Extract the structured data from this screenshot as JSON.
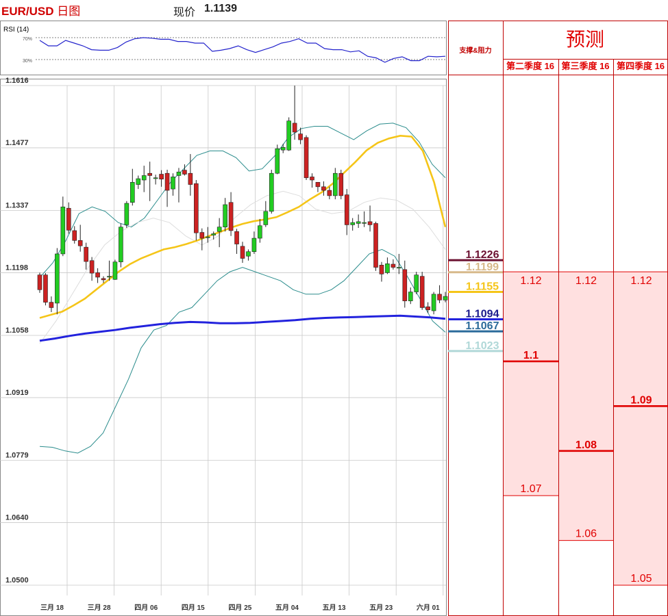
{
  "header": {
    "pair": "EUR/USD",
    "period": "日图",
    "price_label": "现价",
    "price_value": "1.1139"
  },
  "rsi": {
    "label": "RSI (14)",
    "levels": [
      "70%",
      "30%"
    ],
    "color": "#2222cc"
  },
  "chart_data": [
    {
      "type": "candlestick",
      "title": "EUR/USD 日图",
      "y_ticks": [
        "1.1616",
        "1.1477",
        "1.1337",
        "1.1198",
        "1.1058",
        "1.0919",
        "1.0779",
        "1.0640",
        "1.0500"
      ],
      "ylim": [
        1.05,
        1.1616
      ],
      "x_tick_labels": [
        "三月 18",
        "三月 28",
        "四月 06",
        "四月 15",
        "四月 25",
        "五月 04",
        "五月 13",
        "五月 23",
        "六月 01"
      ],
      "grid": true,
      "colors": {
        "up": "#22cc22",
        "down": "#cc2222",
        "ma_fast": "#f5c518",
        "ma_slow": "#2222dd",
        "bands": "#2a8c8c",
        "mid": "#dddddd"
      },
      "candles": [
        [
          1.1193,
          1.116,
          1.1198,
          1.1153
        ],
        [
          1.1193,
          1.1132,
          1.1197,
          1.1125
        ],
        [
          1.1132,
          1.112,
          1.1145,
          1.111
        ],
        [
          1.113,
          1.124,
          1.1253,
          1.1105
        ],
        [
          1.124,
          1.1345,
          1.1368,
          1.1235
        ],
        [
          1.1342,
          1.1293,
          1.1355,
          1.1285
        ],
        [
          1.1292,
          1.127,
          1.1302,
          1.1263
        ],
        [
          1.127,
          1.1258,
          1.1305,
          1.1245
        ],
        [
          1.1255,
          1.1223,
          1.1265,
          1.1205
        ],
        [
          1.1225,
          1.1197,
          1.1233,
          1.118
        ],
        [
          1.1198,
          1.1188,
          1.1208,
          1.1175
        ],
        [
          1.1185,
          1.1182,
          1.119,
          1.1175
        ],
        [
          1.119,
          1.119,
          1.1225,
          1.118
        ],
        [
          1.1183,
          1.1222,
          1.1227,
          1.1182
        ],
        [
          1.1222,
          1.13,
          1.1308,
          1.121
        ],
        [
          1.1305,
          1.1353,
          1.1358,
          1.1298
        ],
        [
          1.1355,
          1.14,
          1.143,
          1.1348
        ],
        [
          1.1395,
          1.1408,
          1.1415,
          1.1385
        ],
        [
          1.1405,
          1.1415,
          1.1437,
          1.1378
        ],
        [
          1.142,
          1.1415,
          1.1446,
          1.1358
        ],
        [
          1.141,
          1.141,
          1.1417,
          1.1395
        ],
        [
          1.1418,
          1.1407,
          1.1427,
          1.139
        ],
        [
          1.142,
          1.1382,
          1.1428,
          1.1345
        ],
        [
          1.1385,
          1.1412,
          1.142,
          1.137
        ],
        [
          1.1415,
          1.1423,
          1.1432,
          1.1355
        ],
        [
          1.1427,
          1.1418,
          1.144,
          1.1415
        ],
        [
          1.142,
          1.1395,
          1.1463,
          1.137
        ],
        [
          1.1397,
          1.1287,
          1.1405,
          1.127
        ],
        [
          1.1288,
          1.1275,
          1.1297,
          1.1248
        ],
        [
          1.1278,
          1.1278,
          1.13,
          1.1265
        ],
        [
          1.1282,
          1.1285,
          1.129,
          1.1272
        ],
        [
          1.129,
          1.13,
          1.132,
          1.1255
        ],
        [
          1.13,
          1.135,
          1.1365,
          1.129
        ],
        [
          1.1355,
          1.1292,
          1.1378,
          1.128
        ],
        [
          1.129,
          1.1262,
          1.1296,
          1.124
        ],
        [
          1.1257,
          1.123,
          1.1267,
          1.122
        ],
        [
          1.1235,
          1.1245,
          1.125,
          1.1225
        ],
        [
          1.1245,
          1.1275,
          1.129,
          1.124
        ],
        [
          1.1275,
          1.1303,
          1.1318,
          1.1265
        ],
        [
          1.1305,
          1.1335,
          1.1358,
          1.13
        ],
        [
          1.1335,
          1.142,
          1.1428,
          1.133
        ],
        [
          1.142,
          1.1475,
          1.1484,
          1.1418
        ],
        [
          1.1472,
          1.1478,
          1.1486,
          1.1465
        ],
        [
          1.1472,
          1.1537,
          1.1545,
          1.147
        ],
        [
          1.1532,
          1.1512,
          1.1616,
          1.1495
        ],
        [
          1.1508,
          1.1495,
          1.1522,
          1.1485
        ],
        [
          1.15,
          1.141,
          1.1505,
          1.1405
        ],
        [
          1.1412,
          1.1405,
          1.142,
          1.1388
        ],
        [
          1.14,
          1.139,
          1.14,
          1.1378
        ],
        [
          1.139,
          1.1382,
          1.1402,
          1.137
        ],
        [
          1.1382,
          1.137,
          1.139,
          1.1362
        ],
        [
          1.137,
          1.142,
          1.1432,
          1.1362
        ],
        [
          1.142,
          1.137,
          1.1428,
          1.1362
        ],
        [
          1.1372,
          1.1305,
          1.1385,
          1.1282
        ],
        [
          1.1305,
          1.131,
          1.132,
          1.1292
        ],
        [
          1.1308,
          1.1312,
          1.1328,
          1.1298
        ],
        [
          1.131,
          1.131,
          1.1335,
          1.13
        ],
        [
          1.1312,
          1.1305,
          1.1348,
          1.129
        ],
        [
          1.1308,
          1.121,
          1.1312,
          1.1202
        ],
        [
          1.1215,
          1.1195,
          1.1222,
          1.1178
        ],
        [
          1.1198,
          1.1218,
          1.1232,
          1.1195
        ],
        [
          1.1217,
          1.121,
          1.1228,
          1.1205
        ],
        [
          1.121,
          1.121,
          1.124,
          1.1195
        ],
        [
          1.1205,
          1.1135,
          1.1225,
          1.112
        ],
        [
          1.1135,
          1.1155,
          1.1165,
          1.1128
        ],
        [
          1.1155,
          1.1193,
          1.12,
          1.115
        ],
        [
          1.119,
          1.112,
          1.12,
          1.1115
        ],
        [
          1.1122,
          1.1115,
          1.1132,
          1.1108
        ],
        [
          1.1113,
          1.115,
          1.1155,
          1.1105
        ],
        [
          1.115,
          1.1137,
          1.117,
          1.113
        ],
        [
          1.1137,
          1.1145,
          1.1155,
          1.1132
        ]
      ],
      "series": [
        {
          "values": [
            1.1097,
            1.1104,
            1.1111,
            1.1125,
            1.114,
            1.116,
            1.118,
            1.12,
            1.1217,
            1.123,
            1.124,
            1.125,
            1.1255,
            1.1262,
            1.127,
            1.128,
            1.1289,
            1.1299,
            1.1307,
            1.1313,
            1.1317,
            1.1322,
            1.1333,
            1.1345,
            1.1362,
            1.1377,
            1.1397,
            1.1421,
            1.1445,
            1.1471,
            1.1488,
            1.1498,
            1.1504,
            1.1502,
            1.147,
            1.14,
            1.13
          ]
        },
        {
          "values": [
            1.1046,
            1.1051,
            1.1057,
            1.1062,
            1.1066,
            1.107,
            1.1075,
            1.1079,
            1.1083,
            1.1086,
            1.1088,
            1.1087,
            1.1085,
            1.1085,
            1.1086,
            1.1088,
            1.109,
            1.1092,
            1.1095,
            1.1097,
            1.1098,
            1.1099,
            1.11,
            1.1101,
            1.1102,
            1.11,
            1.1098,
            1.1095
          ]
        },
        {
          "values": [
            1.1187,
            1.122,
            1.127,
            1.133,
            1.1345,
            1.1335,
            1.131,
            1.13,
            1.132,
            1.136,
            1.14,
            1.143,
            1.146,
            1.147,
            1.147,
            1.1455,
            1.1425,
            1.143,
            1.146,
            1.15,
            1.152,
            1.1525,
            1.1525,
            1.151,
            1.1495,
            1.1515,
            1.153,
            1.1532,
            1.1522,
            1.149,
            1.144,
            1.141
          ]
        },
        {
          "values": [
            1.081,
            1.0808,
            1.08,
            1.0795,
            1.081,
            1.084,
            1.09,
            1.096,
            1.103,
            1.107,
            1.108,
            1.111,
            1.112,
            1.115,
            1.118,
            1.12,
            1.121,
            1.12,
            1.119,
            1.118,
            1.116,
            1.115,
            1.115,
            1.116,
            1.118,
            1.121,
            1.124,
            1.125,
            1.1235,
            1.119,
            1.114,
            1.109,
            1.1065
          ]
        },
        {
          "values": [
            1.104,
            1.109,
            1.115,
            1.121,
            1.126,
            1.129,
            1.131,
            1.132,
            1.131,
            1.128,
            1.126,
            1.128,
            1.132,
            1.135,
            1.137,
            1.138,
            1.137,
            1.134,
            1.133,
            1.1335,
            1.1355,
            1.1365,
            1.136,
            1.134,
            1.13,
            1.125
          ]
        }
      ]
    },
    {
      "type": "line",
      "title": "RSI (14)",
      "ylim": [
        0,
        100
      ],
      "reference_lines": [
        70,
        30
      ],
      "series": [
        {
          "values": [
            65,
            55,
            55,
            65,
            60,
            55,
            48,
            47,
            47,
            52,
            62,
            68,
            70,
            69,
            67,
            67,
            63,
            63,
            60,
            60,
            45,
            47,
            50,
            55,
            48,
            43,
            48,
            53,
            60,
            63,
            68,
            60,
            60,
            50,
            48,
            48,
            44,
            46,
            36,
            33,
            25,
            32,
            35,
            28,
            28,
            36,
            35,
            36
          ]
        }
      ]
    }
  ],
  "levels": {
    "header": "支撑&阻力",
    "items": [
      {
        "label": "1.1226",
        "value": 1.1226,
        "color": "#6b1030",
        "text_color": "#6b1030"
      },
      {
        "label": "1.1199",
        "value": 1.1199,
        "color": "#d7b98a",
        "text_color": "#d7b98a"
      },
      {
        "label": "1.1155",
        "value": 1.1155,
        "color": "#f5c518",
        "text_color": "#f5c518"
      },
      {
        "label": "1.1094",
        "value": 1.1094,
        "color": "#2222dd",
        "text_color": "#1a1a8c"
      },
      {
        "label": "1.1067",
        "value": 1.1067,
        "color": "#2a6a9a",
        "text_color": "#2a6a9a"
      },
      {
        "label": "1.1023",
        "value": 1.1023,
        "color": "#b0d8d8",
        "text_color": "#b0d8d8"
      }
    ]
  },
  "forecast": {
    "title": "预测",
    "accent": "#e00000",
    "fill": "#ffe0e0",
    "columns": [
      {
        "header": "第二季度 16",
        "high_label": "1.12",
        "high": 1.12,
        "target_label": "1.1",
        "target": 1.1,
        "low_label": "1.07",
        "low": 1.07
      },
      {
        "header": "第三季度 16",
        "high_label": "1.12",
        "high": 1.12,
        "target_label": "1.08",
        "target": 1.08,
        "low_label": "1.06",
        "low": 1.06
      },
      {
        "header": "第四季度 16",
        "high_label": "1.12",
        "high": 1.12,
        "target_label": "1.09",
        "target": 1.09,
        "low_label": "1.05",
        "low": 1.05
      }
    ]
  }
}
